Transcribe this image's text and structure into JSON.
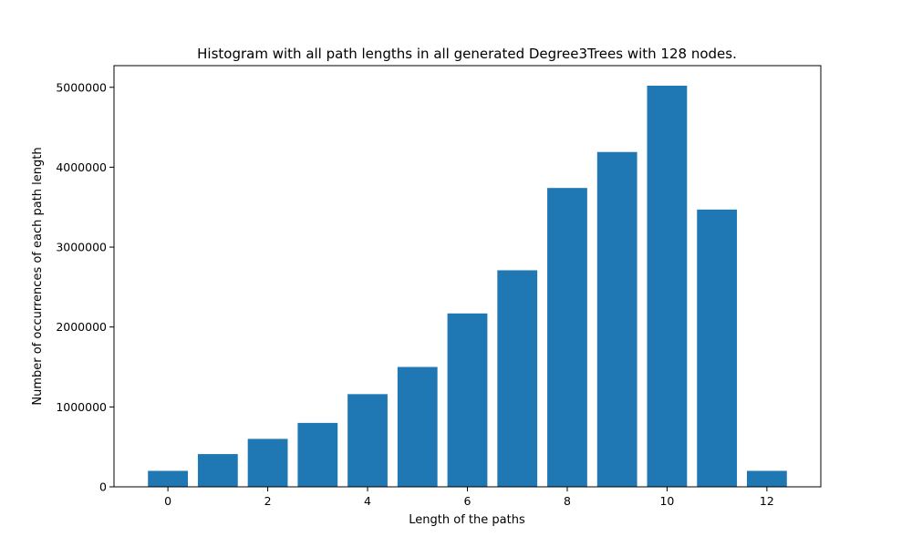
{
  "chart_data": {
    "type": "bar",
    "title": "Histogram with all path lengths in all generated Degree3Trees with 128 nodes.",
    "xlabel": "Length of the paths",
    "ylabel": "Number of occurrences of each path length",
    "x": [
      0,
      1,
      2,
      3,
      4,
      5,
      6,
      7,
      8,
      9,
      10,
      11,
      12
    ],
    "values": [
      200000,
      410000,
      600000,
      800000,
      1160000,
      1500000,
      2170000,
      2710000,
      3740000,
      4190000,
      5020000,
      3470000,
      200000
    ],
    "xlim": [
      -1.08,
      13.08
    ],
    "ylim": [
      0,
      5271000
    ],
    "xticks": [
      0,
      2,
      4,
      6,
      8,
      10,
      12
    ],
    "xtick_labels": [
      "0",
      "2",
      "4",
      "6",
      "8",
      "10",
      "12"
    ],
    "yticks": [
      0,
      1000000,
      2000000,
      3000000,
      4000000,
      5000000
    ],
    "ytick_labels": [
      "0",
      "1000000",
      "2000000",
      "3000000",
      "4000000",
      "5000000"
    ],
    "bar_color": "#1f77b4",
    "grid": false,
    "legend": "none"
  }
}
